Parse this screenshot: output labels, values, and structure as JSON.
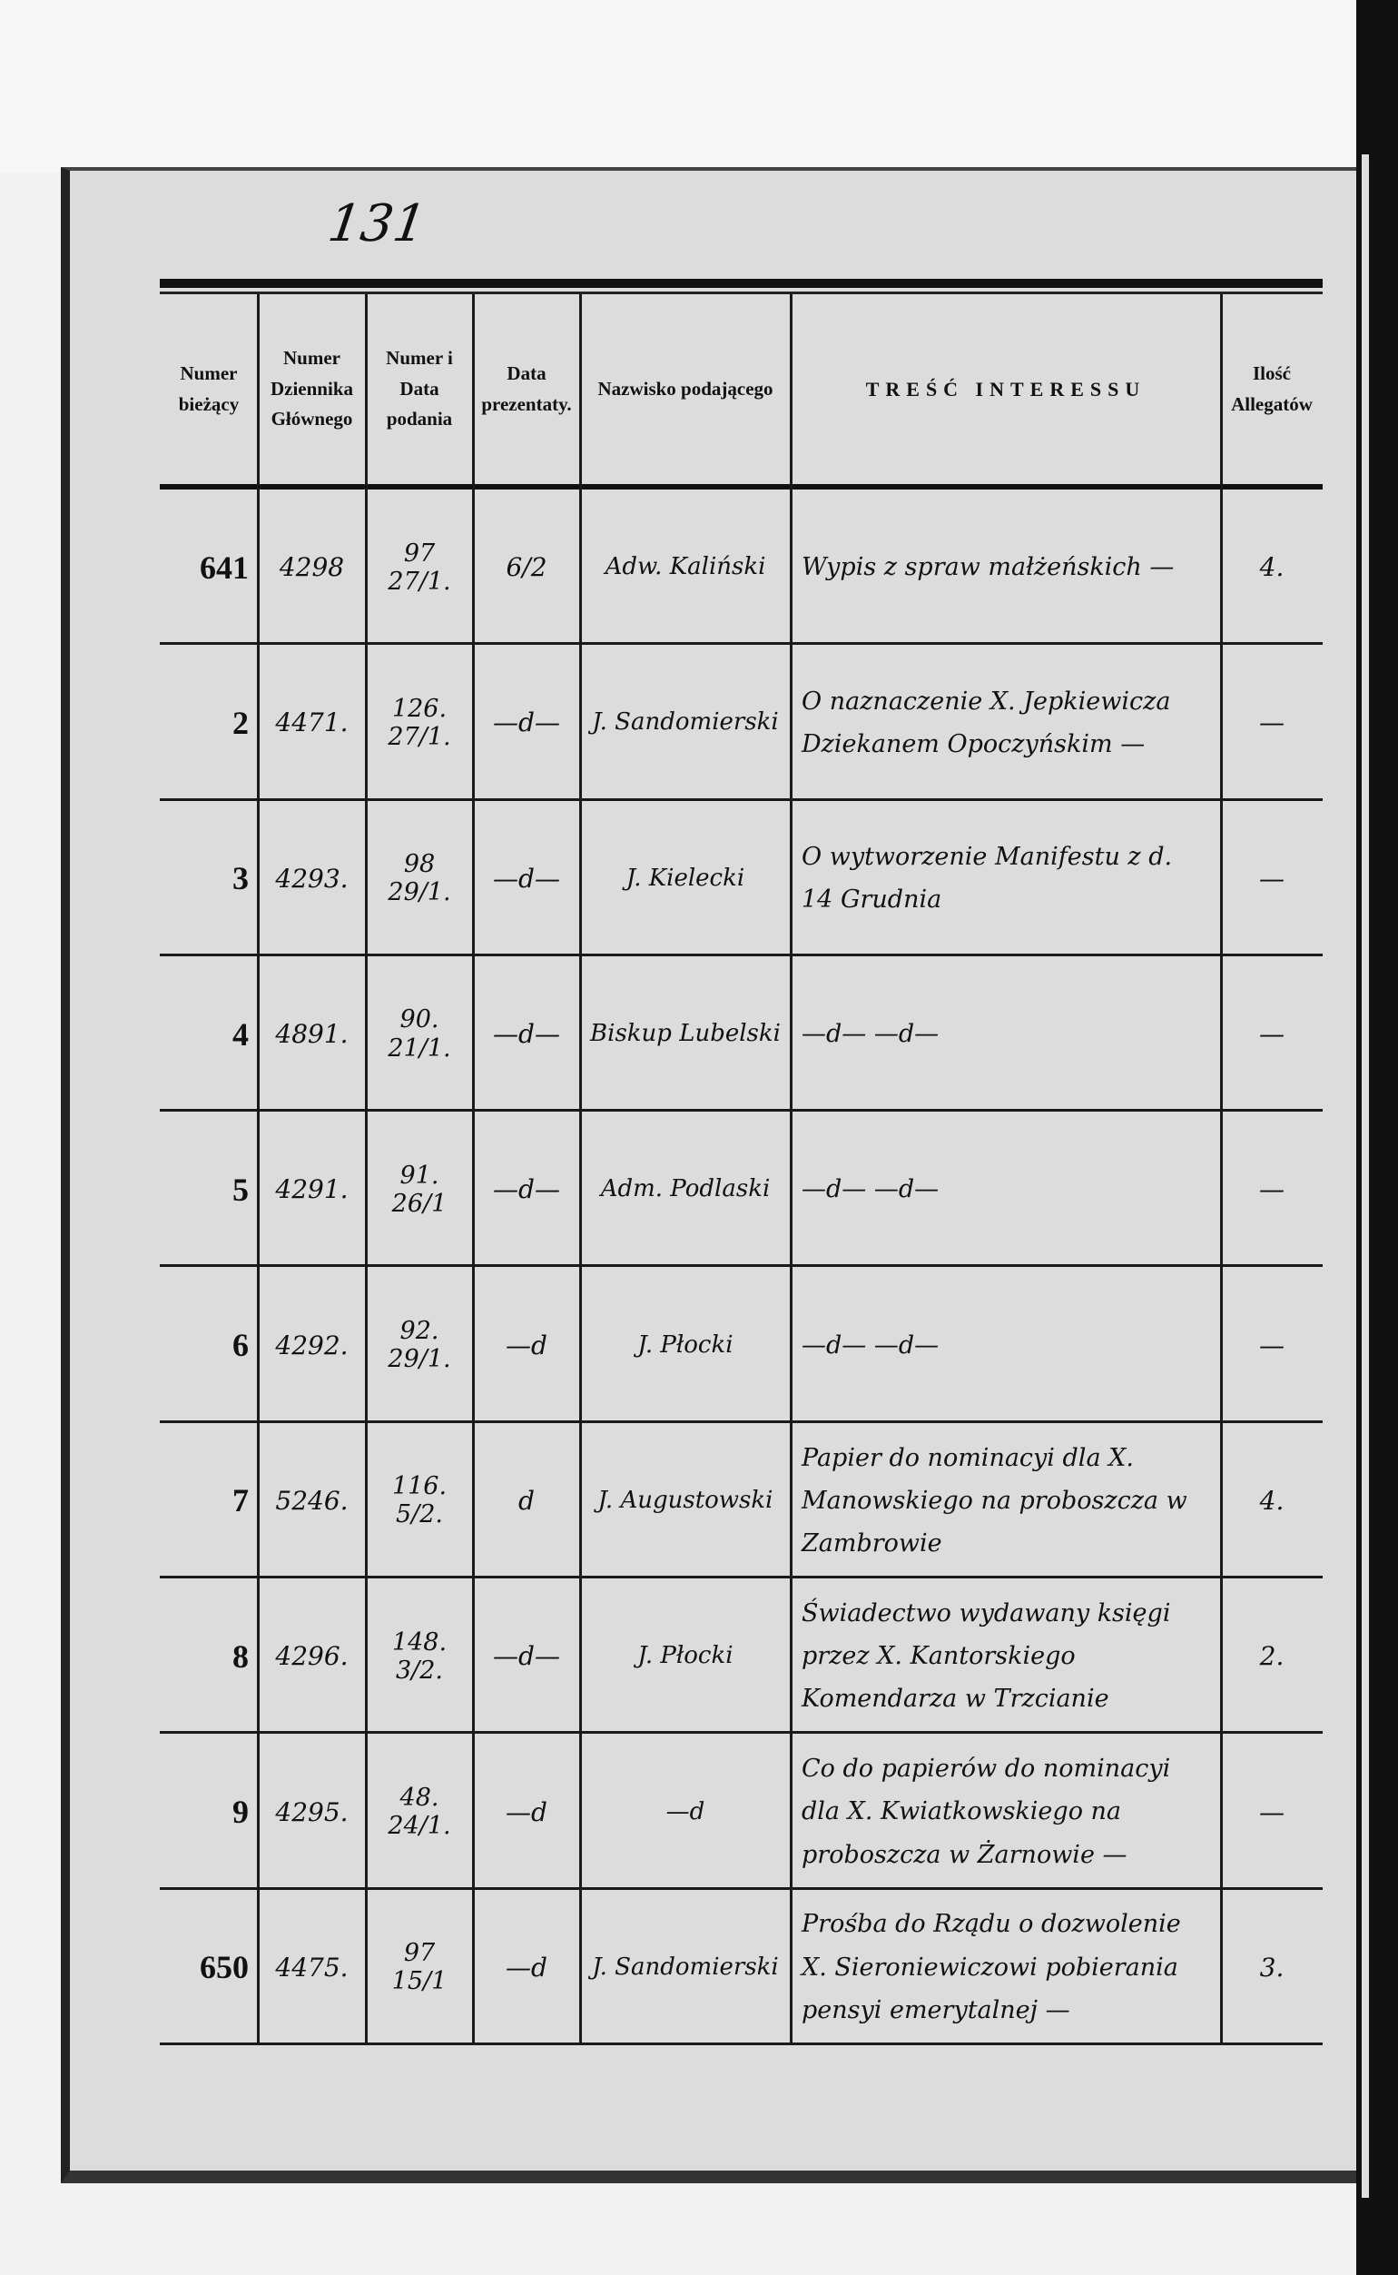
{
  "page_number": "131",
  "headers": {
    "numer_biezacy": "Numer bieżący",
    "numer_dziennika": "Numer Dziennika Głównego",
    "numer_data_podania": "Numer i Data podania",
    "data_prezentaty": "Data prezentaty.",
    "nazwisko": "Nazwisko podającego",
    "tresc": "TREŚĆ INTERESSU",
    "ilosc": "Ilość Allegatów"
  },
  "rows": [
    {
      "numer": "641",
      "dziennik": "4298",
      "podanie": [
        "97",
        "27/1."
      ],
      "prezentata": "6/2",
      "nazwisko": "Adw. Kaliński",
      "tresc": "Wypis z spraw małżeńskich —",
      "ilosc": "4."
    },
    {
      "numer": "2",
      "dziennik": "4471.",
      "podanie": [
        "126.",
        "27/1."
      ],
      "prezentata": "—d—",
      "nazwisko": "J. Sandomierski",
      "tresc": "O naznaczenie X. Jepkiewicza Dziekanem Opoczyńskim —",
      "ilosc": "—"
    },
    {
      "numer": "3",
      "dziennik": "4293.",
      "podanie": [
        "98",
        "29/1."
      ],
      "prezentata": "—d—",
      "nazwisko": "J. Kielecki",
      "tresc": "O wytworzenie Manifestu z d. 14 Grudnia",
      "ilosc": "—"
    },
    {
      "numer": "4",
      "dziennik": "4891.",
      "podanie": [
        "90.",
        "21/1."
      ],
      "prezentata": "—d—",
      "nazwisko": "Biskup Lubelski",
      "tresc": "—d—      —d—",
      "ilosc": "—"
    },
    {
      "numer": "5",
      "dziennik": "4291.",
      "podanie": [
        "91.",
        "26/1"
      ],
      "prezentata": "—d—",
      "nazwisko": "Adm. Podlaski",
      "tresc": "—d—      —d—",
      "ilosc": "—"
    },
    {
      "numer": "6",
      "dziennik": "4292.",
      "podanie": [
        "92.",
        "29/1."
      ],
      "prezentata": "—d",
      "nazwisko": "J. Płocki",
      "tresc": "—d—      —d—",
      "ilosc": "—"
    },
    {
      "numer": "7",
      "dziennik": "5246.",
      "podanie": [
        "116.",
        "5/2."
      ],
      "prezentata": "d",
      "nazwisko": "J. Augustowski",
      "tresc": "Papier do nominacyi dla X. Manowskiego na proboszcza w Zambrowie",
      "ilosc": "4."
    },
    {
      "numer": "8",
      "dziennik": "4296.",
      "podanie": [
        "148.",
        "3/2."
      ],
      "prezentata": "—d—",
      "nazwisko": "J. Płocki",
      "tresc": "Świadectwo wydawany księgi przez X. Kantorskiego Komendarza w Trzcianie",
      "ilosc": "2."
    },
    {
      "numer": "9",
      "dziennik": "4295.",
      "podanie": [
        "48.",
        "24/1."
      ],
      "prezentata": "—d",
      "nazwisko": "—d",
      "tresc": "Co do papierów do nominacyi dla X. Kwiatkowskiego na proboszcza w Żarnowie —",
      "ilosc": "—"
    },
    {
      "numer": "650",
      "dziennik": "4475.",
      "podanie": [
        "97",
        "15/1"
      ],
      "prezentata": "—d",
      "nazwisko": "J. Sandomierski",
      "tresc": "Prośba do Rządu o dozwolenie X. Sieroniewiczowi pobierania pensyi emerytalnej —",
      "ilosc": "3."
    }
  ]
}
